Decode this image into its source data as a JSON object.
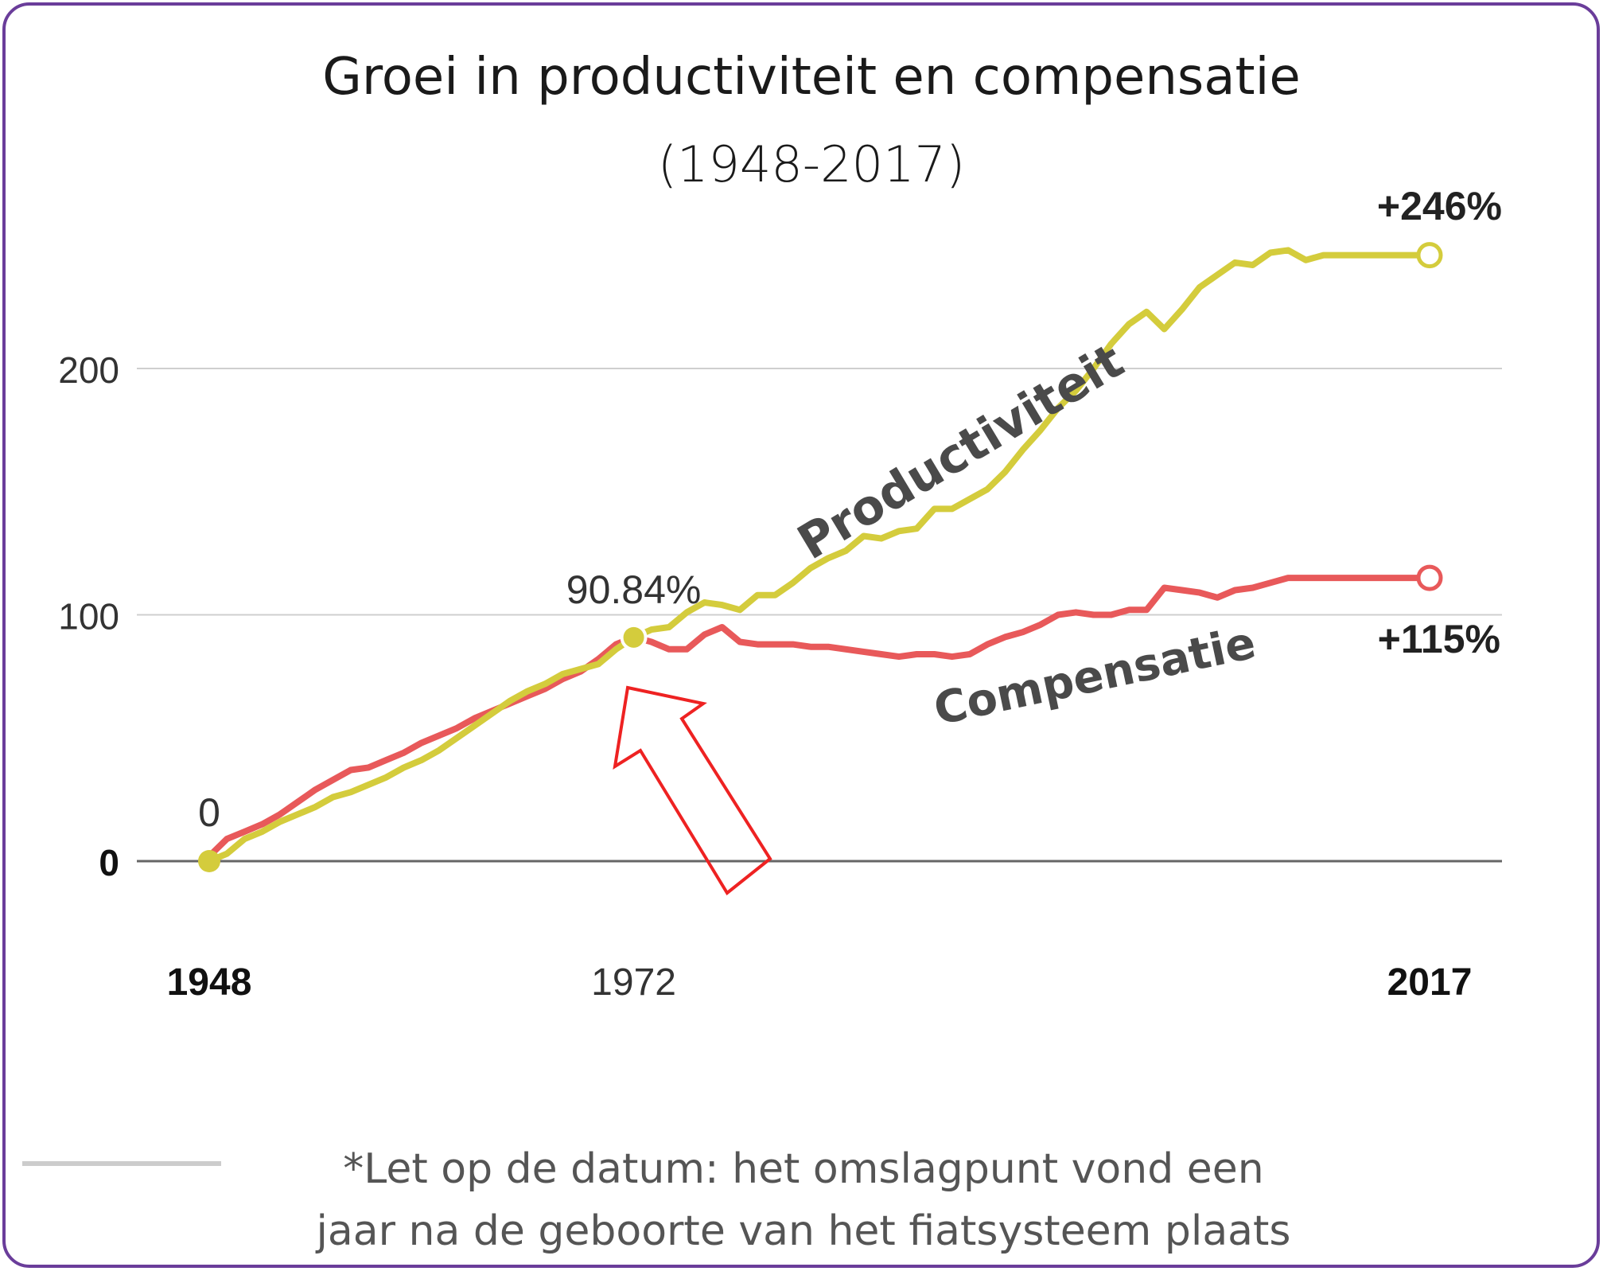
{
  "chart_data": {
    "type": "line",
    "title": "Groei in productiviteit en compensatie",
    "subtitle": "(1948-2017)",
    "xlim": [
      1948,
      2017
    ],
    "ylim": [
      0,
      260
    ],
    "x_ticks": [
      {
        "value": 1948,
        "label": "1948",
        "bold": true
      },
      {
        "value": 1972,
        "label": "1972",
        "bold": false
      },
      {
        "value": 2017,
        "label": "2017",
        "bold": true
      }
    ],
    "y_ticks": [
      {
        "value": 0,
        "label": "0",
        "bold": true
      },
      {
        "value": 100,
        "label": "100",
        "bold": false
      },
      {
        "value": 200,
        "label": "200",
        "bold": false
      }
    ],
    "grid": true,
    "series": [
      {
        "name": "Productiviteit",
        "color": "#d4cc3c",
        "x": [
          1948,
          1949,
          1950,
          1951,
          1952,
          1953,
          1954,
          1955,
          1956,
          1957,
          1958,
          1959,
          1960,
          1961,
          1962,
          1963,
          1964,
          1965,
          1966,
          1967,
          1968,
          1969,
          1970,
          1971,
          1972,
          1973,
          1974,
          1975,
          1976,
          1977,
          1978,
          1979,
          1980,
          1981,
          1982,
          1983,
          1984,
          1985,
          1986,
          1987,
          1988,
          1989,
          1990,
          1991,
          1992,
          1993,
          1994,
          1995,
          1996,
          1997,
          1998,
          1999,
          2000,
          2001,
          2002,
          2003,
          2004,
          2005,
          2006,
          2007,
          2008,
          2009,
          2010,
          2011,
          2012,
          2013,
          2014,
          2015,
          2016,
          2017
        ],
        "y": [
          0,
          3,
          9,
          12,
          16,
          19,
          22,
          26,
          28,
          31,
          34,
          38,
          41,
          45,
          50,
          55,
          60,
          65,
          69,
          72,
          76,
          78,
          80,
          86,
          90.84,
          94,
          95,
          101,
          105,
          104,
          102,
          108,
          108,
          113,
          119,
          123,
          126,
          132,
          131,
          134,
          135,
          143,
          143,
          147,
          151,
          158,
          167,
          175,
          184,
          191,
          200,
          210,
          218,
          223,
          216,
          224,
          233,
          238,
          243,
          242,
          247,
          248,
          244,
          246,
          246,
          246,
          246,
          246,
          246,
          246
        ],
        "end_label": "+246%"
      },
      {
        "name": "Compensatie",
        "color": "#e8595a",
        "x": [
          1948,
          1949,
          1950,
          1951,
          1952,
          1953,
          1954,
          1955,
          1956,
          1957,
          1958,
          1959,
          1960,
          1961,
          1962,
          1963,
          1964,
          1965,
          1966,
          1967,
          1968,
          1969,
          1970,
          1971,
          1972,
          1973,
          1974,
          1975,
          1976,
          1977,
          1978,
          1979,
          1980,
          1981,
          1982,
          1983,
          1984,
          1985,
          1986,
          1987,
          1988,
          1989,
          1990,
          1991,
          1992,
          1993,
          1994,
          1995,
          1996,
          1997,
          1998,
          1999,
          2000,
          2001,
          2002,
          2003,
          2004,
          2005,
          2006,
          2007,
          2008,
          2009,
          2010,
          2011,
          2012,
          2013,
          2014,
          2015,
          2016,
          2017
        ],
        "y": [
          2,
          9,
          12,
          15,
          19,
          24,
          29,
          33,
          37,
          38,
          41,
          44,
          48,
          51,
          54,
          58,
          61,
          64,
          67,
          70,
          74,
          77,
          82,
          88,
          91,
          89,
          86,
          86,
          92,
          95,
          89,
          88,
          88,
          88,
          87,
          87,
          86,
          85,
          84,
          83,
          84,
          84,
          83,
          84,
          88,
          91,
          93,
          96,
          100,
          101,
          100,
          100,
          102,
          102,
          111,
          110,
          109,
          107,
          110,
          111,
          113,
          115,
          115,
          115,
          115,
          115,
          115,
          115,
          115,
          115
        ],
        "end_label": "+115%"
      }
    ],
    "annotations": {
      "start_value": "0",
      "turning_point": {
        "x": 1972,
        "y": 90.84,
        "label": "90.84%"
      }
    }
  },
  "footnote": {
    "line1": "*Let op de datum: het omslagpunt vond een",
    "line2": "jaar na de geboorte van het fiatsysteem plaats"
  }
}
